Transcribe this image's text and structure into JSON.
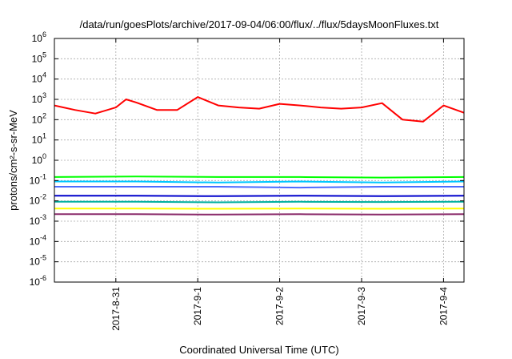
{
  "chart_data": {
    "type": "line",
    "title": "/data/run/goesPlots/archive/2017-09-04/06:00/flux/../flux/5daysMoonFluxes.txt",
    "xlabel": "Coordinated Universal Time (UTC)",
    "ylabel": "protons/cm²-s-sr-MeV",
    "y_scale": "log",
    "ylim": [
      1e-06,
      1000000.0
    ],
    "xlim": [
      "2017-08-30T06:00",
      "2017-09-04T06:00"
    ],
    "grid": true,
    "legend": "none",
    "y_ticks": [
      {
        "value": 1e-06,
        "base": "10",
        "exp": "-6"
      },
      {
        "value": 1e-05,
        "base": "10",
        "exp": "-5"
      },
      {
        "value": 0.0001,
        "base": "10",
        "exp": "-4"
      },
      {
        "value": 0.001,
        "base": "10",
        "exp": "-3"
      },
      {
        "value": 0.01,
        "base": "10",
        "exp": "-2"
      },
      {
        "value": 0.1,
        "base": "10",
        "exp": "-1"
      },
      {
        "value": 1,
        "base": "10",
        "exp": "0"
      },
      {
        "value": 10,
        "base": "10",
        "exp": "1"
      },
      {
        "value": 100,
        "base": "10",
        "exp": "2"
      },
      {
        "value": 1000,
        "base": "10",
        "exp": "3"
      },
      {
        "value": 10000,
        "base": "10",
        "exp": "4"
      },
      {
        "value": 100000,
        "base": "10",
        "exp": "5"
      },
      {
        "value": 1000000,
        "base": "10",
        "exp": "6"
      }
    ],
    "x_ticks": [
      {
        "value": "2017-08-31T00:00",
        "label": "2017-8-31"
      },
      {
        "value": "2017-09-01T00:00",
        "label": "2017-9-1"
      },
      {
        "value": "2017-09-02T00:00",
        "label": "2017-9-2"
      },
      {
        "value": "2017-09-03T00:00",
        "label": "2017-9-3"
      },
      {
        "value": "2017-09-04T00:00",
        "label": "2017-9-4"
      }
    ],
    "series": [
      {
        "color": "#ff0000",
        "x": [
          "2017-08-30T06:00",
          "2017-08-30T12:00",
          "2017-08-30T18:00",
          "2017-08-31T00:00",
          "2017-08-31T03:00",
          "2017-08-31T06:00",
          "2017-08-31T12:00",
          "2017-08-31T18:00",
          "2017-09-01T00:00",
          "2017-09-01T06:00",
          "2017-09-01T12:00",
          "2017-09-01T18:00",
          "2017-09-02T00:00",
          "2017-09-02T06:00",
          "2017-09-02T12:00",
          "2017-09-02T18:00",
          "2017-09-03T00:00",
          "2017-09-03T06:00",
          "2017-09-03T12:00",
          "2017-09-03T18:00",
          "2017-09-04T00:00",
          "2017-09-04T06:00"
        ],
        "values": [
          500,
          300,
          200,
          400,
          1000,
          700,
          300,
          300,
          1300,
          500,
          400,
          350,
          600,
          500,
          400,
          350,
          400,
          650,
          100,
          80,
          500,
          220
        ]
      },
      {
        "color": "#00ff00",
        "x": [
          "2017-08-30T06:00",
          "2017-08-31T06:00",
          "2017-09-01T06:00",
          "2017-09-02T06:00",
          "2017-09-03T06:00",
          "2017-09-04T06:00"
        ],
        "values": [
          0.15,
          0.16,
          0.15,
          0.15,
          0.14,
          0.15
        ]
      },
      {
        "color": "#00c8ff",
        "x": [
          "2017-08-30T06:00",
          "2017-08-31T06:00",
          "2017-09-01T06:00",
          "2017-09-02T06:00",
          "2017-09-03T06:00",
          "2017-09-04T06:00"
        ],
        "values": [
          0.09,
          0.09,
          0.08,
          0.09,
          0.08,
          0.09
        ]
      },
      {
        "color": "#4d6bff",
        "x": [
          "2017-08-30T06:00",
          "2017-08-31T06:00",
          "2017-09-01T06:00",
          "2017-09-02T06:00",
          "2017-09-03T06:00",
          "2017-09-04T06:00"
        ],
        "values": [
          0.05,
          0.05,
          0.05,
          0.045,
          0.05,
          0.05
        ]
      },
      {
        "color": "#0000cc",
        "x": [
          "2017-08-30T06:00",
          "2017-08-31T06:00",
          "2017-09-01T06:00",
          "2017-09-02T06:00",
          "2017-09-03T06:00",
          "2017-09-04T06:00"
        ],
        "values": [
          0.018,
          0.018,
          0.017,
          0.018,
          0.017,
          0.018
        ]
      },
      {
        "color": "#00b0a0",
        "x": [
          "2017-08-30T06:00",
          "2017-08-31T06:00",
          "2017-09-01T06:00",
          "2017-09-02T06:00",
          "2017-09-03T06:00",
          "2017-09-04T06:00"
        ],
        "values": [
          0.009,
          0.009,
          0.0085,
          0.009,
          0.0088,
          0.009
        ]
      },
      {
        "color": "#ffff00",
        "x": [
          "2017-08-30T06:00",
          "2017-08-31T06:00",
          "2017-09-01T06:00",
          "2017-09-02T06:00",
          "2017-09-03T06:00",
          "2017-09-04T06:00"
        ],
        "values": [
          0.0042,
          0.0042,
          0.0041,
          0.0042,
          0.0041,
          0.0042
        ]
      },
      {
        "color": "#8b2c6b",
        "x": [
          "2017-08-30T06:00",
          "2017-08-31T06:00",
          "2017-09-01T06:00",
          "2017-09-02T06:00",
          "2017-09-03T06:00",
          "2017-09-04T06:00"
        ],
        "values": [
          0.0022,
          0.0022,
          0.0021,
          0.0022,
          0.0021,
          0.0022
        ]
      }
    ]
  }
}
